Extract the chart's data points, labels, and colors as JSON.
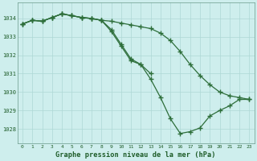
{
  "title": "Graphe pression niveau de la mer (hPa)",
  "background_color": "#ceeeed",
  "grid_color": "#aed8d6",
  "line_color": "#2d6e3a",
  "marker_color": "#2d6e3a",
  "ylim": [
    1027.2,
    1034.85
  ],
  "yticks": [
    1028,
    1029,
    1030,
    1031,
    1032,
    1033,
    1034
  ],
  "xlabel_color": "#1e5c28",
  "series": [
    {
      "x": [
        0,
        1,
        2,
        3,
        4,
        5,
        6,
        7,
        8,
        9,
        10,
        11,
        12,
        13,
        14,
        15,
        16,
        17,
        18,
        19,
        20,
        21,
        22,
        23
      ],
      "y": [
        1033.7,
        1033.9,
        1033.85,
        1034.05,
        1034.25,
        1034.15,
        1034.05,
        1034.0,
        1033.9,
        1033.85,
        1033.75,
        1033.65,
        1033.55,
        1033.45,
        1033.2,
        1032.8,
        1032.2,
        1031.5,
        1030.9,
        1030.4,
        1030.0,
        1029.8,
        1029.7,
        1029.6
      ]
    },
    {
      "x": [
        0,
        1,
        2,
        3,
        4,
        5,
        6,
        7,
        8,
        9,
        10,
        11,
        12,
        13
      ],
      "y": [
        1033.7,
        1033.9,
        1033.85,
        1034.05,
        1034.25,
        1034.15,
        1034.05,
        1034.0,
        1033.9,
        1033.4,
        1032.6,
        1031.8,
        1031.5,
        1031.0
      ]
    },
    {
      "x": [
        0,
        1,
        2,
        3,
        4,
        5,
        6,
        7,
        8,
        9,
        10,
        11,
        12,
        13,
        14,
        15,
        16,
        17,
        18,
        19,
        20,
        21,
        22,
        23
      ],
      "y": [
        1033.7,
        1033.9,
        1033.85,
        1034.05,
        1034.25,
        1034.15,
        1034.05,
        1034.0,
        1033.9,
        1033.3,
        1032.5,
        1031.7,
        1031.5,
        1030.7,
        1029.7,
        1028.55,
        1027.75,
        1027.85,
        1028.05,
        1028.7,
        1029.0,
        1029.25,
        1029.6,
        1029.6
      ]
    }
  ],
  "x_labels": [
    "0",
    "1",
    "2",
    "3",
    "4",
    "5",
    "6",
    "7",
    "8",
    "9",
    "10",
    "11",
    "12",
    "13",
    "14",
    "15",
    "16",
    "17",
    "18",
    "19",
    "20",
    "21",
    "22",
    "23"
  ]
}
